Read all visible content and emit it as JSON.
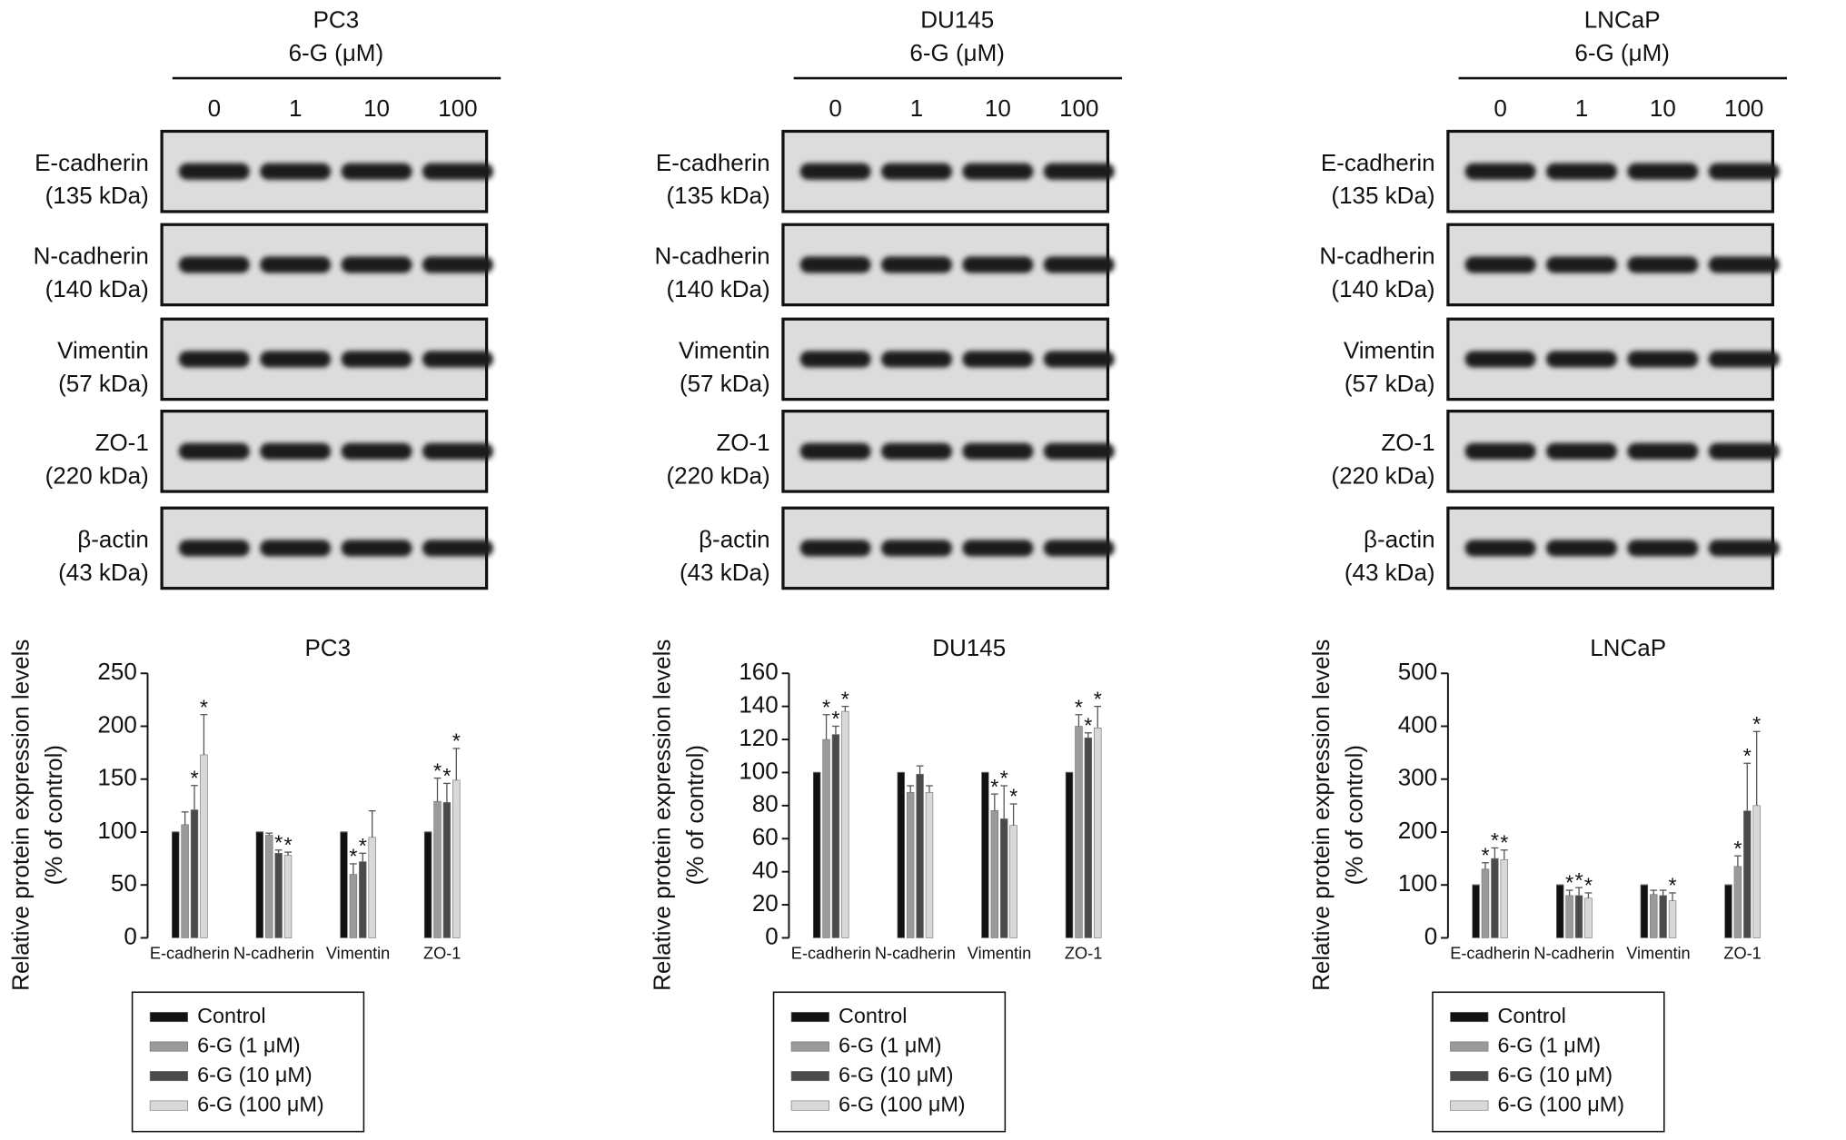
{
  "blots": [
    {
      "cell": "PC3",
      "treatment": "6-G (μM)",
      "doses": [
        "0",
        "1",
        "10",
        "100"
      ],
      "proteins": [
        {
          "name": "E-cadherin",
          "size": "(135 kDa)"
        },
        {
          "name": "N-cadherin",
          "size": "(140 kDa)"
        },
        {
          "name": "Vimentin",
          "size": "(57 kDa)"
        },
        {
          "name": "ZO-1",
          "size": "(220 kDa)"
        },
        {
          "name": "β-actin",
          "size": "(43 kDa)"
        }
      ]
    },
    {
      "cell": "DU145",
      "treatment": "6-G (μM)",
      "doses": [
        "0",
        "1",
        "10",
        "100"
      ],
      "proteins": [
        {
          "name": "E-cadherin",
          "size": "(135 kDa)"
        },
        {
          "name": "N-cadherin",
          "size": "(140 kDa)"
        },
        {
          "name": "Vimentin",
          "size": "(57 kDa)"
        },
        {
          "name": "ZO-1",
          "size": "(220 kDa)"
        },
        {
          "name": "β-actin",
          "size": "(43 kDa)"
        }
      ]
    },
    {
      "cell": "LNCaP",
      "treatment": "6-G (μM)",
      "doses": [
        "0",
        "1",
        "10",
        "100"
      ],
      "proteins": [
        {
          "name": "E-cadherin",
          "size": "(135 kDa)"
        },
        {
          "name": "N-cadherin",
          "size": "(140 kDa)"
        },
        {
          "name": "Vimentin",
          "size": "(57 kDa)"
        },
        {
          "name": "ZO-1",
          "size": "(220 kDa)"
        },
        {
          "name": "β-actin",
          "size": "(43 kDa)"
        }
      ]
    }
  ],
  "chart_data": [
    {
      "type": "bar",
      "title": "PC3",
      "ylabel": [
        "Relative protein expression levels",
        "(% of control)"
      ],
      "categories": [
        "E-cadherin",
        "N-cadherin",
        "Vimentin",
        "ZO-1"
      ],
      "ylim": [
        0,
        250
      ],
      "yticks": [
        0,
        50,
        100,
        150,
        200,
        250
      ],
      "series": [
        {
          "name": "Control",
          "color": "#111111",
          "values": [
            100,
            100,
            100,
            100
          ],
          "errors": [
            0,
            0,
            0,
            0
          ]
        },
        {
          "name": "6-G (1 μM)",
          "color": "#9a9a9a",
          "values": [
            107,
            97,
            60,
            129
          ],
          "errors": [
            12,
            2,
            10,
            22
          ]
        },
        {
          "name": "6-G (10 μM)",
          "color": "#4a4a4a",
          "values": [
            121,
            80,
            72,
            128
          ],
          "errors": [
            23,
            3,
            8,
            18
          ]
        },
        {
          "name": "6-G (100 μM)",
          "color": "#d8d8d8",
          "values": [
            173,
            78,
            95,
            149
          ],
          "errors": [
            38,
            3,
            25,
            30
          ]
        }
      ],
      "annotations": [
        {
          "text": "*",
          "series": 2,
          "category": 0
        },
        {
          "text": "*",
          "series": 3,
          "category": 0
        },
        {
          "text": "*",
          "series": 2,
          "category": 1
        },
        {
          "text": "*",
          "series": 3,
          "category": 1
        },
        {
          "text": "*",
          "series": 1,
          "category": 2
        },
        {
          "text": "*",
          "series": 2,
          "category": 2
        },
        {
          "text": "*",
          "series": 1,
          "category": 3
        },
        {
          "text": "*",
          "series": 2,
          "category": 3
        },
        {
          "text": "*",
          "series": 3,
          "category": 3
        }
      ]
    },
    {
      "type": "bar",
      "title": "DU145",
      "ylabel": [
        "Relative protein expression levels",
        "(% of control)"
      ],
      "categories": [
        "E-cadherin",
        "N-cadherin",
        "Vimentin",
        "ZO-1"
      ],
      "ylim": [
        0,
        160
      ],
      "yticks": [
        0,
        20,
        40,
        60,
        80,
        100,
        120,
        140,
        160
      ],
      "series": [
        {
          "name": "Control",
          "color": "#111111",
          "values": [
            100,
            100,
            100,
            100
          ],
          "errors": [
            0,
            0,
            0,
            0
          ]
        },
        {
          "name": "6-G (1 μM)",
          "color": "#9a9a9a",
          "values": [
            120,
            88,
            77,
            128
          ],
          "errors": [
            15,
            4,
            10,
            7
          ]
        },
        {
          "name": "6-G (10 μM)",
          "color": "#4a4a4a",
          "values": [
            123,
            99,
            72,
            121
          ],
          "errors": [
            5,
            5,
            20,
            3
          ]
        },
        {
          "name": "6-G (100 μM)",
          "color": "#d8d8d8",
          "values": [
            137,
            88,
            68,
            127
          ],
          "errors": [
            3,
            4,
            13,
            13
          ]
        }
      ],
      "annotations": [
        {
          "text": "*",
          "series": 1,
          "category": 0
        },
        {
          "text": "*",
          "series": 2,
          "category": 0
        },
        {
          "text": "*",
          "series": 3,
          "category": 0
        },
        {
          "text": "*",
          "series": 1,
          "category": 2
        },
        {
          "text": "*",
          "series": 2,
          "category": 2
        },
        {
          "text": "*",
          "series": 3,
          "category": 2
        },
        {
          "text": "*",
          "series": 1,
          "category": 3
        },
        {
          "text": "*",
          "series": 2,
          "category": 3
        },
        {
          "text": "*",
          "series": 3,
          "category": 3
        }
      ]
    },
    {
      "type": "bar",
      "title": "LNCaP",
      "ylabel": [
        "Relative protein expression levels",
        "(% of control)"
      ],
      "categories": [
        "E-cadherin",
        "N-cadherin",
        "Vimentin",
        "ZO-1"
      ],
      "ylim": [
        0,
        500
      ],
      "yticks": [
        0,
        100,
        200,
        300,
        400,
        500
      ],
      "series": [
        {
          "name": "Control",
          "color": "#111111",
          "values": [
            100,
            100,
            100,
            100
          ],
          "errors": [
            0,
            0,
            0,
            0
          ]
        },
        {
          "name": "6-G (1 μM)",
          "color": "#9a9a9a",
          "values": [
            130,
            80,
            82,
            135
          ],
          "errors": [
            12,
            10,
            8,
            20
          ]
        },
        {
          "name": "6-G (10 μM)",
          "color": "#4a4a4a",
          "values": [
            150,
            80,
            80,
            240
          ],
          "errors": [
            20,
            15,
            10,
            90
          ]
        },
        {
          "name": "6-G (100 μM)",
          "color": "#d8d8d8",
          "values": [
            148,
            75,
            70,
            250
          ],
          "errors": [
            18,
            10,
            15,
            140
          ]
        }
      ],
      "annotations": [
        {
          "text": "*",
          "series": 1,
          "category": 0
        },
        {
          "text": "*",
          "series": 2,
          "category": 0
        },
        {
          "text": "*",
          "series": 3,
          "category": 0
        },
        {
          "text": "*",
          "series": 1,
          "category": 1
        },
        {
          "text": "*",
          "series": 2,
          "category": 1
        },
        {
          "text": "*",
          "series": 3,
          "category": 1
        },
        {
          "text": "*",
          "series": 3,
          "category": 2
        },
        {
          "text": "*",
          "series": 1,
          "category": 3
        },
        {
          "text": "*",
          "series": 2,
          "category": 3
        },
        {
          "text": "*",
          "series": 3,
          "category": 3
        }
      ]
    }
  ]
}
